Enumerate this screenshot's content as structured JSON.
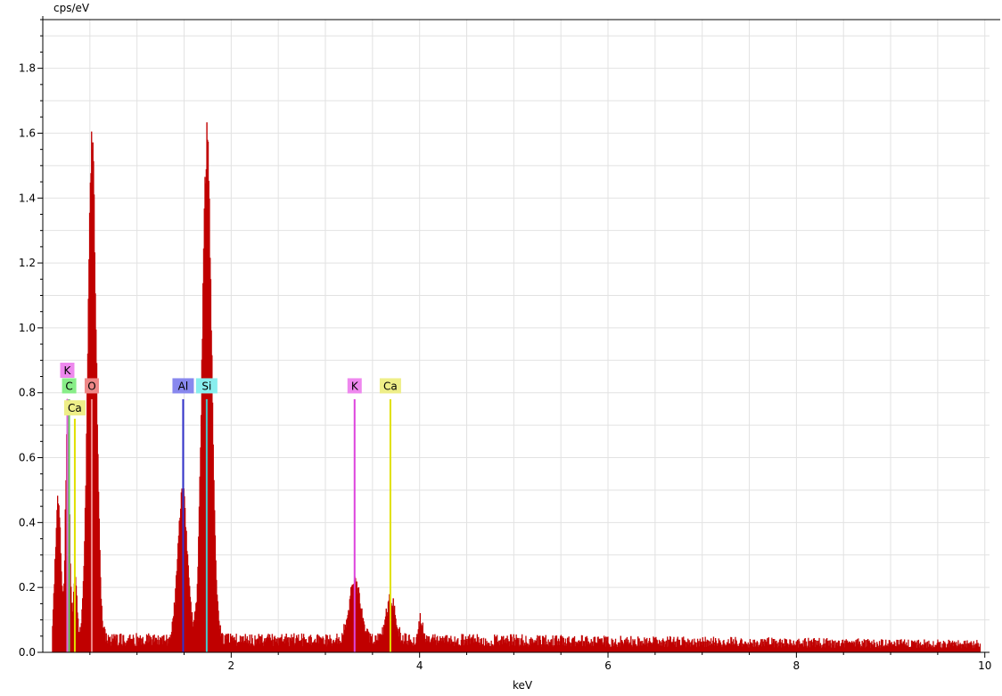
{
  "chart_data": {
    "type": "bar",
    "ylabel": "cps/eV",
    "xlabel": "keV",
    "xlim": [
      0.0,
      10.05
    ],
    "ylim": [
      0.0,
      1.95
    ],
    "x_ticks": [
      2,
      4,
      6,
      8,
      10
    ],
    "x_tick_labels": [
      "2",
      "4",
      "6",
      "8",
      "10"
    ],
    "y_ticks": [
      0.0,
      0.2,
      0.4,
      0.6,
      0.8,
      1.0,
      1.2,
      1.4,
      1.6,
      1.8
    ],
    "y_tick_labels": [
      "0.0",
      "0.2",
      "0.4",
      "0.6",
      "0.8",
      "1.0",
      "1.2",
      "1.4",
      "1.6",
      "1.8"
    ],
    "grid": true,
    "spectrum_color": "#c00000",
    "spectrum_features": {
      "background_counts": 0.045,
      "peaks": [
        {
          "center_kev": 0.16,
          "height": 0.45,
          "width_kev": 0.03
        },
        {
          "center_kev": 0.26,
          "height": 0.78,
          "width_kev": 0.02
        },
        {
          "center_kev": 0.34,
          "height": 0.2,
          "width_kev": 0.02
        },
        {
          "center_kev": 0.52,
          "height": 1.57,
          "width_kev": 0.045
        },
        {
          "center_kev": 1.48,
          "height": 0.48,
          "width_kev": 0.05
        },
        {
          "center_kev": 1.74,
          "height": 1.58,
          "width_kev": 0.05
        },
        {
          "center_kev": 3.31,
          "height": 0.19,
          "width_kev": 0.06
        },
        {
          "center_kev": 3.69,
          "height": 0.13,
          "width_kev": 0.05
        },
        {
          "center_kev": 4.01,
          "height": 0.07,
          "width_kev": 0.02
        }
      ]
    },
    "element_markers": [
      {
        "label": "K",
        "x": 0.26,
        "row": 0,
        "color": "#ee88ee",
        "line_color": "#dd66dd",
        "line_top": 0.78
      },
      {
        "label": "C",
        "x": 0.28,
        "row": 1,
        "color": "#88ee88",
        "line_color": "#66cc66",
        "line_top": 0.78
      },
      {
        "label": "O",
        "x": 0.52,
        "row": 1,
        "color": "#ee8888",
        "line_color": "#ee8888",
        "line_top": 0.78
      },
      {
        "label": "Ca",
        "x": 0.34,
        "row": 2,
        "color": "#eeee88",
        "line_color": "#e0e000",
        "line_top": 0.72
      },
      {
        "label": "Al",
        "x": 1.49,
        "row": 1,
        "color": "#8888ee",
        "line_color": "#3333cc",
        "line_top": 0.78
      },
      {
        "label": "Si",
        "x": 1.74,
        "row": 1,
        "color": "#88eeee",
        "line_color": "#44cccc",
        "line_top": 0.78
      },
      {
        "label": "K",
        "x": 3.31,
        "row": 1,
        "color": "#ee88ee",
        "line_color": "#dd44dd",
        "line_top": 0.78
      },
      {
        "label": "Ca",
        "x": 3.69,
        "row": 1,
        "color": "#eeee88",
        "line_color": "#e0e000",
        "line_top": 0.78
      }
    ]
  }
}
